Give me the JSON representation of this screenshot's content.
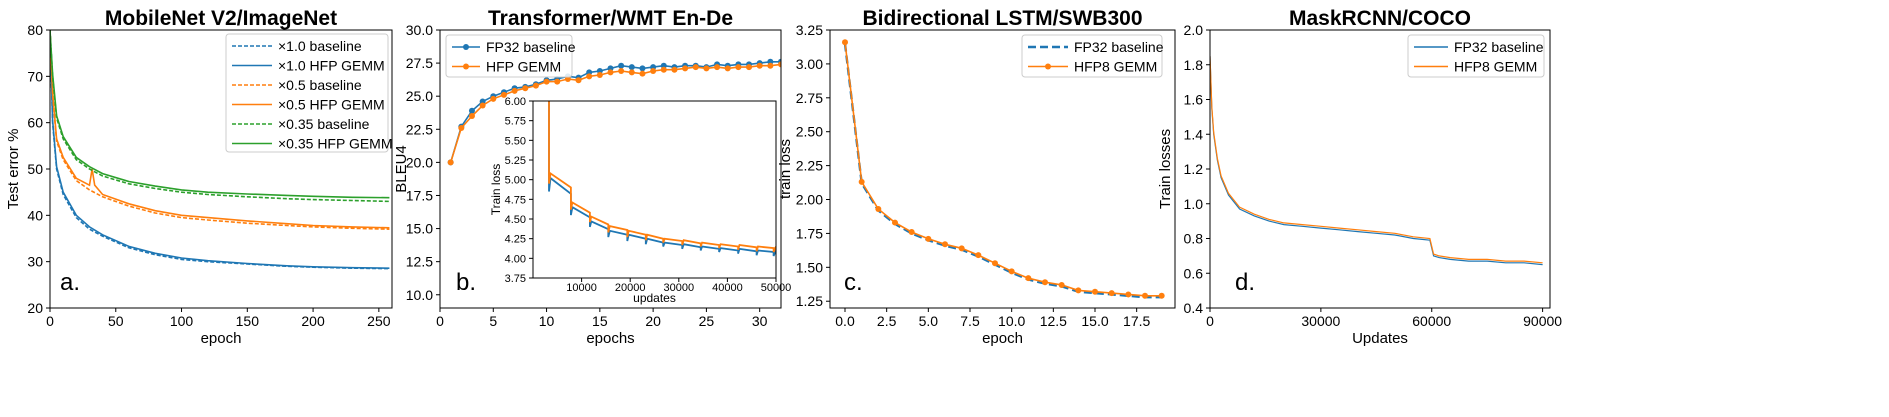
{
  "chart_data": [
    {
      "type": "line",
      "title": "MobileNet V2/ImageNet",
      "xlabel": "epoch",
      "ylabel": "Test error %",
      "xlim": [
        0,
        260
      ],
      "ylim": [
        20,
        80
      ],
      "xticks": [
        "0",
        "50",
        "100",
        "150",
        "200",
        "250"
      ],
      "yticks": [
        "20",
        "30",
        "40",
        "50",
        "60",
        "70",
        "80"
      ],
      "legend": "top-right",
      "panel_label": "a.",
      "series": [
        {
          "name": "×1.0 baseline",
          "color": "#1f77b4",
          "style": "dashed",
          "x": [
            0,
            2,
            5,
            10,
            20,
            30,
            40,
            60,
            80,
            100,
            120,
            150,
            180,
            200,
            230,
            258
          ],
          "y": [
            80,
            60,
            50,
            44.5,
            39.5,
            37,
            35.5,
            33,
            31.5,
            30.5,
            30,
            29.5,
            29,
            28.8,
            28.6,
            28.5
          ]
        },
        {
          "name": "×1.0 HFP GEMM",
          "color": "#1f77b4",
          "style": "solid",
          "x": [
            0,
            2,
            5,
            10,
            20,
            30,
            40,
            60,
            80,
            100,
            120,
            150,
            180,
            200,
            230,
            258
          ],
          "y": [
            80,
            60.5,
            50.5,
            45,
            40,
            37.5,
            35.8,
            33.3,
            31.8,
            30.8,
            30.2,
            29.6,
            29.1,
            28.9,
            28.7,
            28.6
          ]
        },
        {
          "name": "×0.5 baseline",
          "color": "#ff7f0e",
          "style": "dashed",
          "x": [
            0,
            2,
            5,
            10,
            20,
            30,
            40,
            60,
            80,
            100,
            120,
            150,
            180,
            200,
            230,
            258
          ],
          "y": [
            80,
            66,
            56,
            52,
            47.5,
            45.5,
            44,
            42,
            40.5,
            39.5,
            39,
            38.3,
            37.8,
            37.5,
            37.2,
            37
          ]
        },
        {
          "name": "×0.5 HFP GEMM",
          "color": "#ff7f0e",
          "style": "solid",
          "x": [
            0,
            2,
            5,
            10,
            20,
            30,
            32,
            34,
            40,
            60,
            80,
            100,
            120,
            150,
            180,
            200,
            230,
            258
          ],
          "y": [
            80,
            66.5,
            56.5,
            52.5,
            48,
            46.5,
            50,
            46.5,
            44.5,
            42.5,
            41,
            40,
            39.5,
            38.8,
            38.2,
            37.8,
            37.5,
            37.3
          ]
        },
        {
          "name": "×0.35 baseline",
          "color": "#2ca02c",
          "style": "dashed",
          "x": [
            0,
            2,
            5,
            10,
            20,
            30,
            40,
            60,
            80,
            100,
            120,
            150,
            180,
            200,
            230,
            258
          ],
          "y": [
            80,
            70,
            61,
            56.5,
            52,
            50,
            48.5,
            46.8,
            45.8,
            45,
            44.5,
            44,
            43.6,
            43.4,
            43.2,
            43
          ]
        },
        {
          "name": "×0.35 HFP GEMM",
          "color": "#2ca02c",
          "style": "solid",
          "x": [
            0,
            2,
            5,
            10,
            20,
            30,
            40,
            60,
            80,
            100,
            120,
            150,
            180,
            200,
            230,
            258
          ],
          "y": [
            80,
            70.5,
            61.5,
            57,
            52.5,
            50.5,
            49,
            47.3,
            46.3,
            45.5,
            45,
            44.6,
            44.3,
            44.1,
            43.9,
            43.8
          ]
        }
      ]
    },
    {
      "type": "line",
      "title": "Transformer/WMT En-De",
      "xlabel": "epochs",
      "ylabel": "BLEU4",
      "xlim": [
        0,
        32
      ],
      "ylim": [
        9,
        30
      ],
      "xticks": [
        "0",
        "5",
        "10",
        "15",
        "20",
        "25",
        "30"
      ],
      "yticks": [
        "10.0",
        "12.5",
        "15.0",
        "17.5",
        "20.0",
        "22.5",
        "25.0",
        "27.5",
        "30.0"
      ],
      "legend": "top-left",
      "panel_label": "b.",
      "series": [
        {
          "name": "FP32 baseline",
          "color": "#1f77b4",
          "marker": "circle",
          "x": [
            1,
            2,
            3,
            4,
            5,
            6,
            7,
            8,
            9,
            10,
            11,
            12,
            13,
            14,
            15,
            16,
            17,
            18,
            19,
            20,
            21,
            22,
            23,
            24,
            25,
            26,
            27,
            28,
            29,
            30,
            31,
            32
          ],
          "y": [
            20,
            22.7,
            23.9,
            24.6,
            25.0,
            25.3,
            25.6,
            25.7,
            25.9,
            26.2,
            26.3,
            26.5,
            26.4,
            26.8,
            26.9,
            27.1,
            27.3,
            27.2,
            27.1,
            27.2,
            27.3,
            27.2,
            27.3,
            27.3,
            27.2,
            27.4,
            27.3,
            27.4,
            27.4,
            27.5,
            27.6,
            27.6
          ]
        },
        {
          "name": "HFP GEMM",
          "color": "#ff7f0e",
          "marker": "circle",
          "x": [
            1,
            2,
            3,
            4,
            5,
            6,
            7,
            8,
            9,
            10,
            11,
            12,
            13,
            14,
            15,
            16,
            17,
            18,
            19,
            20,
            21,
            22,
            23,
            24,
            25,
            26,
            27,
            28,
            29,
            30,
            31,
            32
          ],
          "y": [
            20,
            22.6,
            23.5,
            24.3,
            24.8,
            25.1,
            25.4,
            25.6,
            25.8,
            26.1,
            26.1,
            26.3,
            26.2,
            26.5,
            26.6,
            26.8,
            26.9,
            26.8,
            26.7,
            26.9,
            27.0,
            27.0,
            27.1,
            27.2,
            27.1,
            27.2,
            27.1,
            27.2,
            27.2,
            27.3,
            27.3,
            27.4
          ]
        }
      ],
      "inset": {
        "xlabel": "updates",
        "ylabel": "Train loss",
        "xlim": [
          0,
          50000
        ],
        "ylim": [
          3.75,
          6.0
        ],
        "xticks": [
          "10000",
          "20000",
          "30000",
          "40000",
          "50000"
        ],
        "yticks": [
          "3.75",
          "4.00",
          "4.25",
          "4.50",
          "4.75",
          "5.00",
          "5.25",
          "5.50",
          "5.75",
          "6.00"
        ],
        "series": [
          {
            "name": "FP32 baseline",
            "color": "#1f77b4",
            "x": [
              3300,
              3300,
              3600,
              7800,
              7800,
              8100,
              11700,
              11700,
              12000,
              15500,
              15500,
              15800,
              19400,
              19400,
              19700,
              23200,
              23200,
              23500,
              26800,
              26800,
              27100,
              30700,
              30700,
              31000,
              34500,
              34500,
              34800,
              38300,
              38300,
              38600,
              42200,
              42200,
              42500,
              46000,
              46000,
              46300,
              49500,
              49500,
              50000
            ],
            "y": [
              6.0,
              4.85,
              5.02,
              4.82,
              4.55,
              4.65,
              4.52,
              4.4,
              4.47,
              4.37,
              4.27,
              4.35,
              4.3,
              4.22,
              4.3,
              4.25,
              4.18,
              4.25,
              4.2,
              4.15,
              4.2,
              4.17,
              4.12,
              4.18,
              4.14,
              4.1,
              4.15,
              4.12,
              4.08,
              4.13,
              4.1,
              4.06,
              4.12,
              4.09,
              4.04,
              4.1,
              4.08,
              4.03,
              4.1
            ]
          },
          {
            "name": "HFP GEMM",
            "color": "#ff7f0e",
            "x": [
              3300,
              3300,
              3600,
              7800,
              7800,
              8100,
              11700,
              11700,
              12000,
              15500,
              15500,
              15800,
              19400,
              19400,
              19700,
              23200,
              23200,
              23500,
              26800,
              26800,
              27100,
              30700,
              30700,
              31000,
              34500,
              34500,
              34800,
              38300,
              38300,
              38600,
              42200,
              42200,
              42500,
              46000,
              46000,
              46300,
              49500,
              49500,
              50000
            ],
            "y": [
              6.0,
              4.95,
              5.08,
              4.9,
              4.62,
              4.71,
              4.58,
              4.46,
              4.53,
              4.43,
              4.33,
              4.41,
              4.36,
              4.27,
              4.35,
              4.3,
              4.23,
              4.3,
              4.25,
              4.2,
              4.25,
              4.22,
              4.17,
              4.23,
              4.19,
              4.15,
              4.2,
              4.17,
              4.13,
              4.18,
              4.15,
              4.11,
              4.17,
              4.14,
              4.09,
              4.15,
              4.13,
              4.08,
              4.15
            ]
          }
        ]
      }
    },
    {
      "type": "line",
      "title": "Bidirectional LSTM/SWB300",
      "xlabel": "epoch",
      "ylabel": "train loss",
      "xlim": [
        -0.9,
        19.8
      ],
      "ylim": [
        1.2,
        3.25
      ],
      "xticks": [
        "0.0",
        "2.5",
        "5.0",
        "7.5",
        "10.0",
        "12.5",
        "15.0",
        "17.5"
      ],
      "yticks": [
        "1.25",
        "1.50",
        "1.75",
        "2.00",
        "2.25",
        "2.50",
        "2.75",
        "3.00",
        "3.25"
      ],
      "legend": "top-right",
      "panel_label": "c.",
      "series": [
        {
          "name": "FP32 baseline",
          "color": "#1f77b4",
          "style": "dashed",
          "x": [
            0,
            1,
            2,
            3,
            4,
            5,
            6,
            7,
            8,
            9,
            10,
            11,
            12,
            13,
            14,
            15,
            16,
            17,
            18,
            19
          ],
          "y": [
            3.15,
            2.12,
            1.92,
            1.82,
            1.75,
            1.7,
            1.66,
            1.63,
            1.58,
            1.52,
            1.46,
            1.41,
            1.38,
            1.36,
            1.32,
            1.31,
            1.3,
            1.29,
            1.28,
            1.28
          ]
        },
        {
          "name": "HFP8 GEMM",
          "color": "#ff7f0e",
          "marker": "circle",
          "x": [
            0,
            1,
            2,
            3,
            4,
            5,
            6,
            7,
            8,
            9,
            10,
            11,
            12,
            13,
            14,
            15,
            16,
            17,
            18,
            19
          ],
          "y": [
            3.16,
            2.13,
            1.93,
            1.83,
            1.76,
            1.71,
            1.67,
            1.64,
            1.59,
            1.53,
            1.47,
            1.42,
            1.39,
            1.37,
            1.33,
            1.32,
            1.31,
            1.3,
            1.29,
            1.29
          ]
        }
      ]
    },
    {
      "type": "line",
      "title": "MaskRCNN/COCO",
      "xlabel": "Updates",
      "ylabel": "Train losses",
      "xlim": [
        0,
        92000
      ],
      "ylim": [
        0.4,
        2.0
      ],
      "xticks": [
        "0",
        "30000",
        "60000",
        "90000"
      ],
      "yticks": [
        "0.4",
        "0.6",
        "0.8",
        "1.0",
        "1.2",
        "1.4",
        "1.6",
        "1.8",
        "2.0"
      ],
      "legend": "top-right",
      "panel_label": "d.",
      "series": [
        {
          "name": "FP32 baseline",
          "color": "#1f77b4",
          "x": [
            0,
            500,
            1000,
            2000,
            3000,
            5000,
            8000,
            12000,
            16000,
            20000,
            25000,
            30000,
            35000,
            40000,
            45000,
            50000,
            55000,
            59500,
            60500,
            62000,
            65000,
            70000,
            75000,
            80000,
            85000,
            90000
          ],
          "y": [
            1.85,
            1.55,
            1.4,
            1.25,
            1.15,
            1.05,
            0.97,
            0.93,
            0.9,
            0.88,
            0.87,
            0.86,
            0.85,
            0.84,
            0.83,
            0.82,
            0.8,
            0.79,
            0.7,
            0.69,
            0.68,
            0.67,
            0.67,
            0.66,
            0.66,
            0.65
          ]
        },
        {
          "name": "HFP8 GEMM",
          "color": "#ff7f0e",
          "x": [
            0,
            500,
            1000,
            2000,
            3000,
            5000,
            8000,
            12000,
            16000,
            20000,
            25000,
            30000,
            35000,
            40000,
            45000,
            50000,
            55000,
            59500,
            60500,
            62000,
            65000,
            70000,
            75000,
            80000,
            85000,
            90000
          ],
          "y": [
            1.85,
            1.56,
            1.41,
            1.26,
            1.16,
            1.06,
            0.98,
            0.94,
            0.91,
            0.89,
            0.88,
            0.87,
            0.86,
            0.85,
            0.84,
            0.83,
            0.81,
            0.8,
            0.71,
            0.7,
            0.69,
            0.68,
            0.68,
            0.67,
            0.67,
            0.66
          ]
        }
      ]
    }
  ]
}
